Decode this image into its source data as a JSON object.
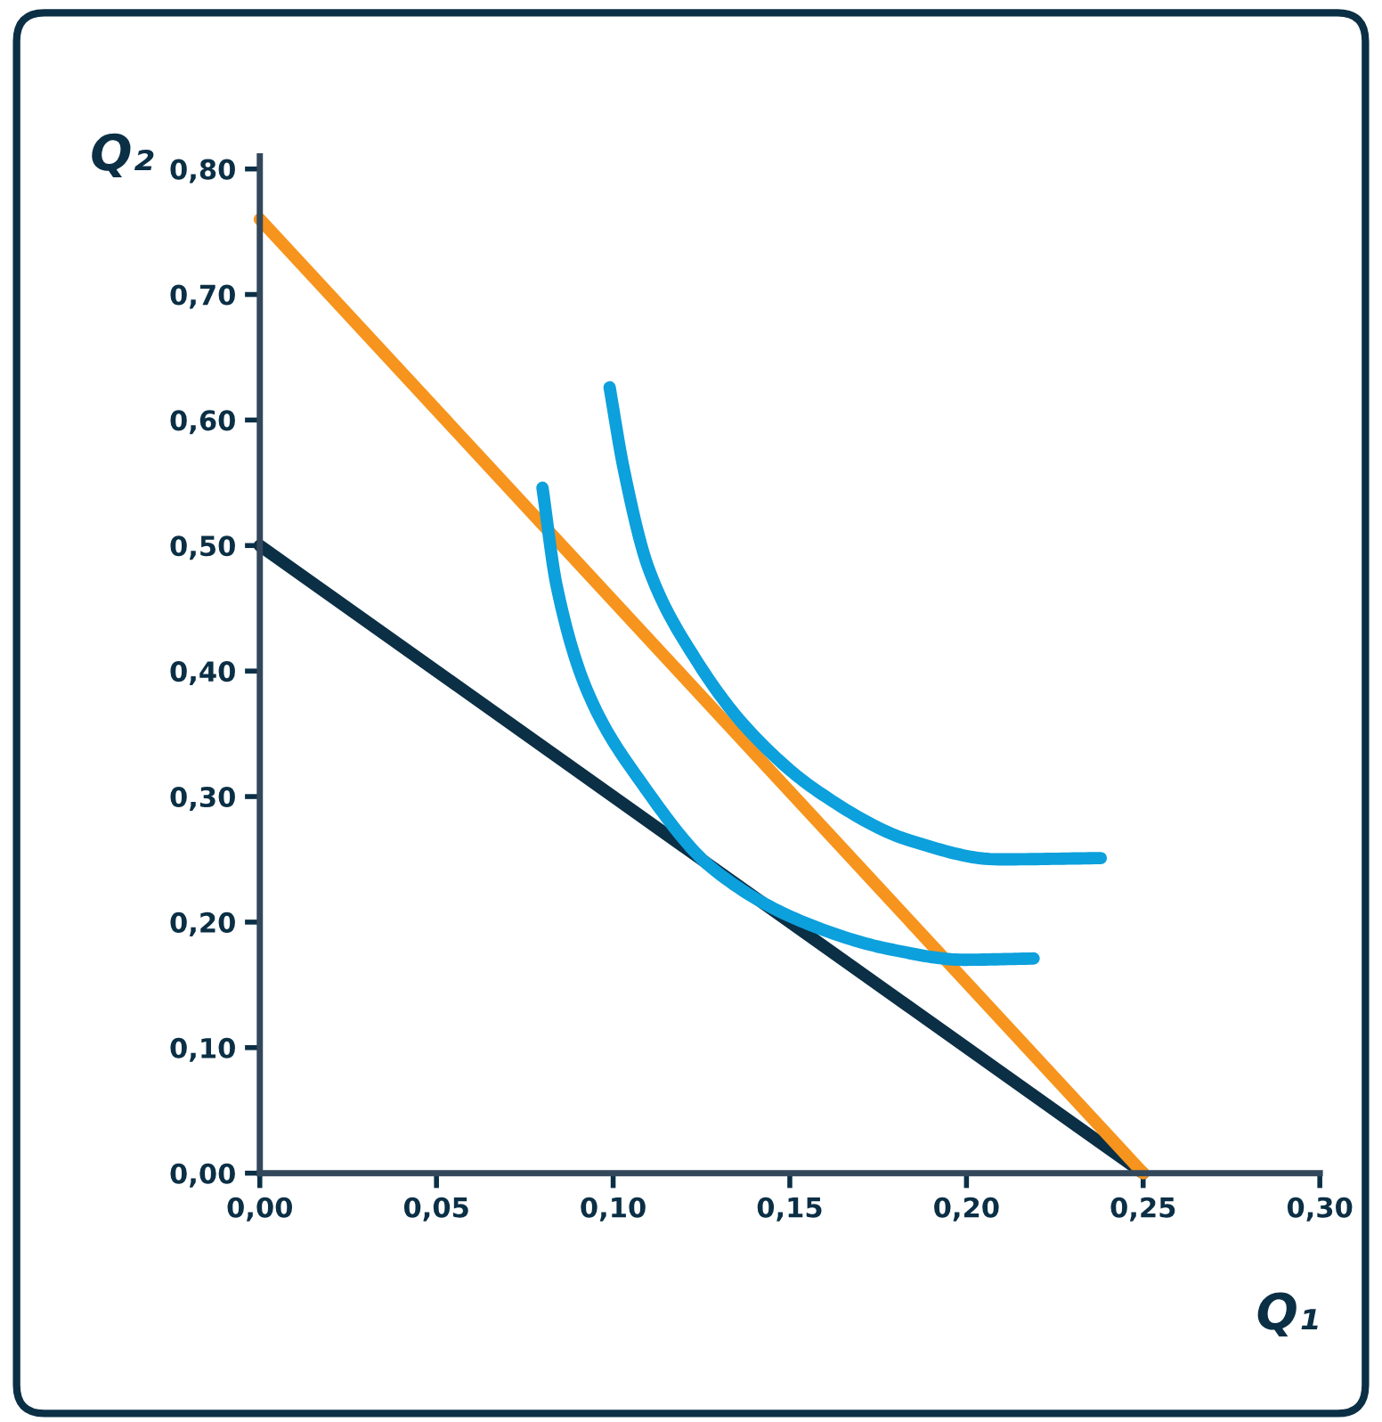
{
  "chart_data": {
    "type": "line",
    "xlabel": "Q₁",
    "ylabel": "Q₂",
    "xlim": [
      0,
      0.3
    ],
    "ylim": [
      0,
      0.81
    ],
    "xticks": [
      {
        "value": 0,
        "label": "0,00"
      },
      {
        "value": 0.05,
        "label": "0,05"
      },
      {
        "value": 0.1,
        "label": "0,10"
      },
      {
        "value": 0.15,
        "label": "0,15"
      },
      {
        "value": 0.2,
        "label": "0,20"
      },
      {
        "value": 0.25,
        "label": "0,25"
      },
      {
        "value": 0.3,
        "label": "0,30"
      }
    ],
    "yticks": [
      {
        "value": 0,
        "label": "0,00"
      },
      {
        "value": 0.1,
        "label": "0,10"
      },
      {
        "value": 0.2,
        "label": "0,20"
      },
      {
        "value": 0.3,
        "label": "0,30"
      },
      {
        "value": 0.4,
        "label": "0,40"
      },
      {
        "value": 0.5,
        "label": "0,50"
      },
      {
        "value": 0.6,
        "label": "0,60"
      },
      {
        "value": 0.7,
        "label": "0,70"
      },
      {
        "value": 0.8,
        "label": "0,80"
      }
    ],
    "grid": false,
    "legend": false,
    "marker": "none",
    "line_style": "solid",
    "series": [
      {
        "color": "#0b2f45",
        "x": [
          0,
          0.25
        ],
        "values": [
          0.5,
          0
        ]
      },
      {
        "color": "#f7941d",
        "x": [
          0,
          0.25
        ],
        "values": [
          0.76,
          0
        ]
      },
      {
        "color": "#0ca0dc",
        "x": [
          0.08,
          0.084,
          0.093,
          0.108,
          0.128,
          0.153,
          0.179,
          0.199,
          0.219
        ],
        "values": [
          0.546,
          0.468,
          0.382,
          0.311,
          0.243,
          0.201,
          0.178,
          0.17,
          0.171
        ]
      },
      {
        "color": "#0ca0dc",
        "x": [
          0.099,
          0.103,
          0.11,
          0.123,
          0.138,
          0.158,
          0.184,
          0.209,
          0.238
        ],
        "values": [
          0.626,
          0.561,
          0.482,
          0.411,
          0.354,
          0.304,
          0.265,
          0.25,
          0.251
        ]
      }
    ]
  }
}
